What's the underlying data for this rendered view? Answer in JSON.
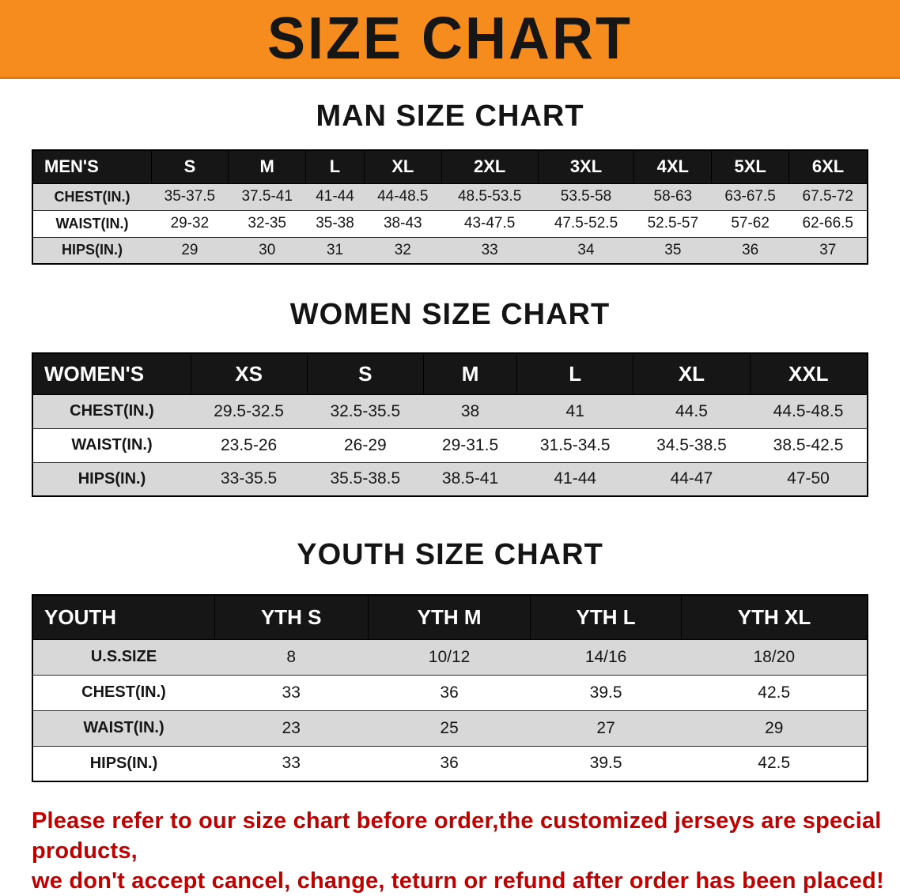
{
  "banner": {
    "title": "SIZE CHART"
  },
  "colors": {
    "banner_bg": "#f68b1e",
    "table_header_bg": "#161616",
    "row_stripe": "#d8d8d8",
    "footer_text": "#c00000"
  },
  "sections": [
    {
      "heading": "MAN SIZE CHART",
      "table": {
        "header": [
          "MEN'S",
          "S",
          "M",
          "L",
          "XL",
          "2XL",
          "3XL",
          "4XL",
          "5XL",
          "6XL"
        ],
        "rows": [
          [
            "CHEST(IN.)",
            "35-37.5",
            "37.5-41",
            "41-44",
            "44-48.5",
            "48.5-53.5",
            "53.5-58",
            "58-63",
            "63-67.5",
            "67.5-72"
          ],
          [
            "WAIST(IN.)",
            "29-32",
            "32-35",
            "35-38",
            "38-43",
            "43-47.5",
            "47.5-52.5",
            "52.5-57",
            "57-62",
            "62-66.5"
          ],
          [
            "HIPS(IN.)",
            "29",
            "30",
            "31",
            "32",
            "33",
            "34",
            "35",
            "36",
            "37"
          ]
        ]
      }
    },
    {
      "heading": "WOMEN SIZE CHART",
      "table": {
        "header": [
          "WOMEN'S",
          "XS",
          "S",
          "M",
          "L",
          "XL",
          "XXL"
        ],
        "rows": [
          [
            "CHEST(IN.)",
            "29.5-32.5",
            "32.5-35.5",
            "38",
            "41",
            "44.5",
            "44.5-48.5"
          ],
          [
            "WAIST(IN.)",
            "23.5-26",
            "26-29",
            "29-31.5",
            "31.5-34.5",
            "34.5-38.5",
            "38.5-42.5"
          ],
          [
            "HIPS(IN.)",
            "33-35.5",
            "35.5-38.5",
            "38.5-41",
            "41-44",
            "44-47",
            "47-50"
          ]
        ]
      }
    },
    {
      "heading": "YOUTH SIZE CHART",
      "table": {
        "header": [
          "YOUTH",
          "YTH S",
          "YTH M",
          "YTH L",
          "YTH XL"
        ],
        "rows": [
          [
            "U.S.SIZE",
            "8",
            "10/12",
            "14/16",
            "18/20"
          ],
          [
            "CHEST(IN.)",
            "33",
            "36",
            "39.5",
            "42.5"
          ],
          [
            "WAIST(IN.)",
            "23",
            "25",
            "27",
            "29"
          ],
          [
            "HIPS(IN.)",
            "33",
            "36",
            "39.5",
            "42.5"
          ]
        ]
      }
    }
  ],
  "footer": {
    "line1": "Please refer to our size chart before order,the customized jerseys are special products,",
    "line2": "we don't accept cancel, change, teturn or refund after order has been placed!"
  }
}
